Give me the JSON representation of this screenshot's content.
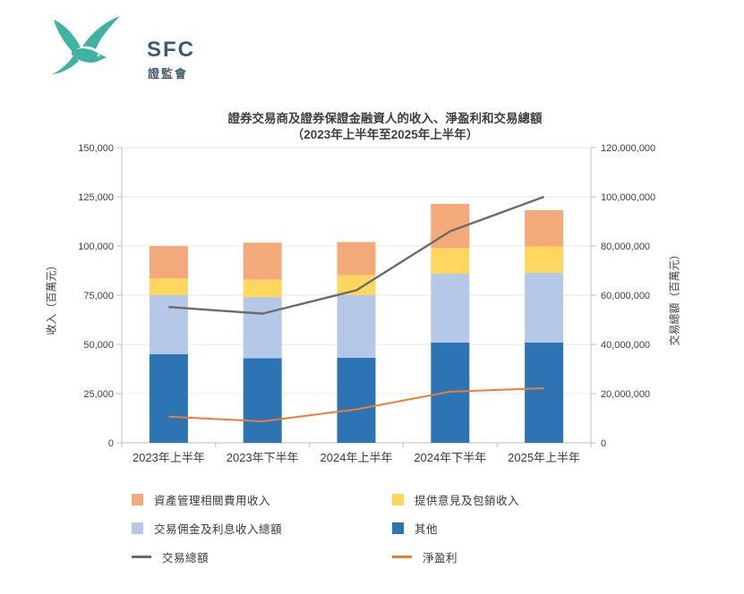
{
  "logo": {
    "acronym": "SFC",
    "chinese": "證監會",
    "teal_color": "#3fb2a2",
    "navy_color": "#3e5b6e"
  },
  "chart_data": {
    "type": "combo-stacked-bar-line",
    "title": "證券交易商及證券保證金融資人的收入、淨盈利和交易總額",
    "subtitle": "（2023年上半年至2025年上半年）",
    "categories": [
      "2023年上半年",
      "2023年下半年",
      "2024年上半年",
      "2024年下半年",
      "2025年上半年"
    ],
    "left_axis": {
      "title": "收入（百萬元）",
      "min": 0,
      "max": 150000,
      "step": 25000
    },
    "right_axis": {
      "title": "交易總額（百萬元）",
      "min": 0,
      "max": 120000000,
      "step": 20000000
    },
    "grid": true,
    "bar_series": [
      {
        "name": "其他",
        "color": "#2d74b5",
        "values": [
          45000,
          43000,
          43200,
          51000,
          51000
        ]
      },
      {
        "name": "交易佣金及利息收入總額",
        "color": "#b5c8e8",
        "values": [
          30000,
          31000,
          31800,
          34900,
          35400
        ]
      },
      {
        "name": "提供意見及包銷收入",
        "color": "#ffd75e",
        "values": [
          8600,
          9000,
          10200,
          13100,
          13400
        ]
      },
      {
        "name": "資產管理相關費用收入",
        "color": "#f4a97b",
        "values": [
          16400,
          18700,
          16800,
          22400,
          18400
        ]
      }
    ],
    "line_series": [
      {
        "name": "交易總額",
        "axis": "right",
        "color": "#6d6a6a",
        "values": [
          55200000,
          52500000,
          62000000,
          86000000,
          100000000
        ]
      },
      {
        "name": "淨盈利",
        "axis": "left",
        "color": "#ed7d31",
        "values": [
          13300,
          10900,
          17000,
          26000,
          27700
        ]
      }
    ],
    "legend": [
      {
        "label": "資產管理相關費用收入",
        "marker": "square",
        "color": "#f4a97b"
      },
      {
        "label": "提供意見及包銷收入",
        "marker": "square",
        "color": "#ffd75e"
      },
      {
        "label": "交易佣金及利息收入總額",
        "marker": "square",
        "color": "#b5c8e8"
      },
      {
        "label": "其他",
        "marker": "square",
        "color": "#2d74b5"
      },
      {
        "label": "交易總額",
        "marker": "line",
        "color": "#6d6a6a"
      },
      {
        "label": "淨盈利",
        "marker": "line",
        "color": "#ed7d31"
      }
    ],
    "legend_position": "bottom"
  }
}
